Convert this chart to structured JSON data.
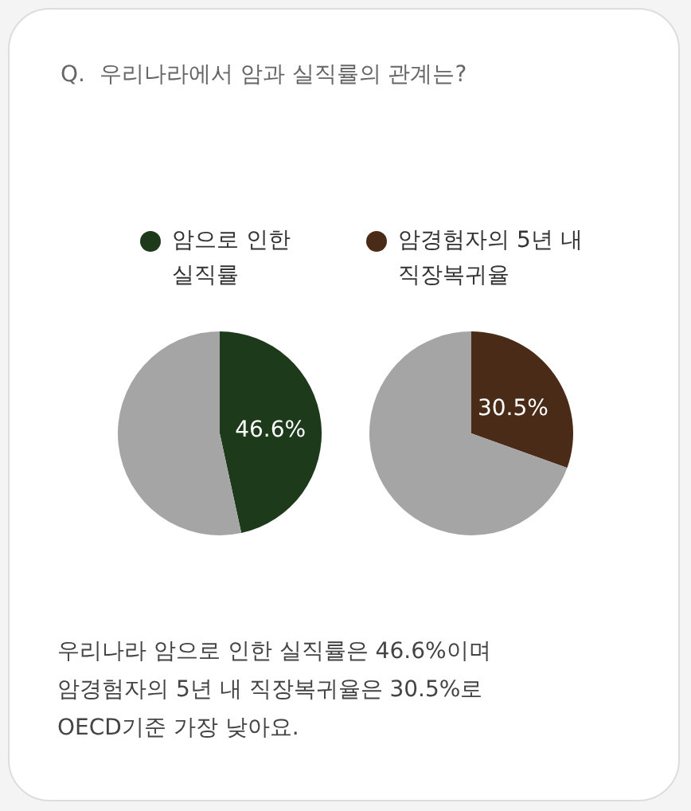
{
  "chart_data": [
    {
      "type": "pie",
      "title": "Q.  우리나라에서 암과 실직률의 관계는?",
      "categories": [
        "암으로 인한 실직률",
        null
      ],
      "values": [
        46.6,
        53.4
      ],
      "colors": [
        "#1d3a1b",
        "#a5a5a5"
      ],
      "value_labels": [
        "46.6%",
        null
      ],
      "legend": "top"
    },
    {
      "type": "pie",
      "categories": [
        "암경험자의 5년 내 직장복귀율",
        null
      ],
      "values": [
        30.5,
        69.5
      ],
      "colors": [
        "#4a2b17",
        "#a5a5a5"
      ],
      "value_labels": [
        "30.5%",
        null
      ],
      "legend": "top",
      "annotations": [
        "우리나라 암으로 인한 실직률은 46.6%이며 암경험자의 5년 내 직장복귀율은 30.5%로 OECD기준 가장 낮아요."
      ]
    }
  ]
}
